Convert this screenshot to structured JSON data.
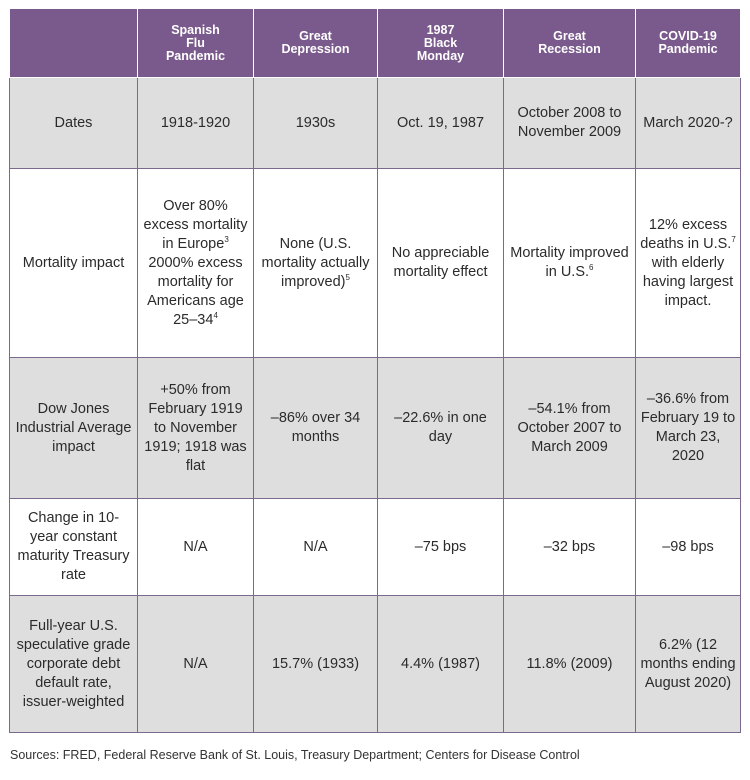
{
  "headers": [
    "",
    "Spanish Flu Pandemic",
    "Great Depression",
    "1987 Black Monday",
    "Great Recession",
    "COVID-19 Pandemic"
  ],
  "header_lines": [
    [],
    [
      "Spanish",
      "Flu",
      "Pandemic"
    ],
    [
      "Great",
      "Depression"
    ],
    [
      "1987",
      "Black",
      "Monday"
    ],
    [
      "Great",
      "Recession"
    ],
    [
      "COVID-19",
      "Pandemic"
    ]
  ],
  "rows": [
    {
      "label": "Dates",
      "cells": [
        "1918-1920",
        "1930s",
        "Oct. 19, 1987",
        "October 2008 to November 2009",
        "March 2020-?"
      ]
    },
    {
      "label": "Mortality impact",
      "cells": [
        "Over 80% excess mortality in Europe",
        "None (U.S. mortality actually improved)",
        "No appreciable mortality effect",
        "Mortality improved in U.S.",
        "12% excess deaths in U.S."
      ],
      "cells_extra": {
        "spanish_flu_sup1": "3",
        "spanish_flu_line2": "2000% excess mortality for Americans age 25–34",
        "spanish_flu_sup2": "4",
        "great_depression_sup": "5",
        "great_recession_sup": "6",
        "covid_sup": "7",
        "covid_tail": " with elderly having largest impact."
      }
    },
    {
      "label": "Dow Jones Industrial Average impact",
      "cells": [
        "+50% from February 1919 to November 1919; 1918 was flat",
        "–86% over 34 months",
        "–22.6% in one day",
        "–54.1% from October 2007 to March 2009",
        "–36.6% from February 19 to March 23, 2020"
      ]
    },
    {
      "label": "Change in 10-year constant maturity Treasury rate",
      "cells": [
        "N/A",
        "N/A",
        "–75 bps",
        "–32 bps",
        "–98 bps"
      ]
    },
    {
      "label": "Full-year U.S. speculative grade corporate debt default rate, issuer-weighted",
      "cells": [
        "N/A",
        "15.7% (1933)",
        "4.4% (1987)",
        "11.8% (2009)",
        "6.2% (12 months ending August 2020)"
      ]
    }
  ],
  "source": "Sources: FRED, Federal Reserve Bank of St. Louis, Treasury Department; Centers for Disease Control",
  "colors": {
    "header_bg": "#7a5a8c",
    "row_gray": "#dedede",
    "border": "#7c6a8e"
  }
}
